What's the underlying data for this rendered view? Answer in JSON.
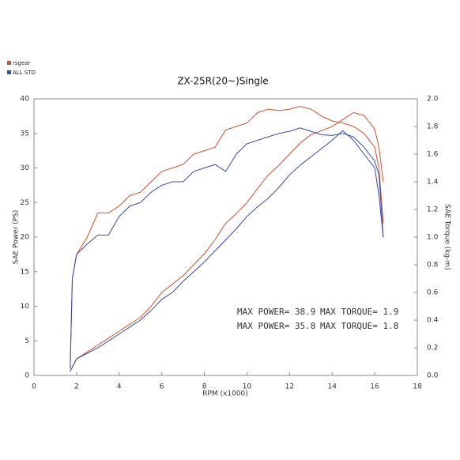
{
  "chart_data": {
    "type": "line",
    "title": "ZX-25R(20~)Single",
    "x_label": "RPM (x1000)",
    "y_label": "SAE Power (PS)",
    "y2_label": "SAE Torque (kg-m)",
    "x": [
      1.7,
      1.8,
      2,
      2.5,
      3,
      3.5,
      4,
      4.5,
      5,
      5.5,
      6,
      6.5,
      7,
      7.5,
      8,
      8.5,
      9,
      9.5,
      10,
      10.5,
      11,
      11.5,
      12,
      12.5,
      13,
      13.5,
      14,
      14.5,
      15,
      15.5,
      16,
      16.2,
      16.4
    ],
    "series": [
      {
        "name": "rsgear",
        "color": "#d0512e",
        "power": [
          1,
          14,
          17.5,
          20,
          23.5,
          23.5,
          24.5,
          26,
          26.5,
          28,
          29.5,
          30,
          30.5,
          32,
          32.5,
          33,
          35.5,
          36,
          36.5,
          38,
          38.5,
          38.3,
          38.5,
          38.9,
          38.5,
          37.5,
          36.8,
          36.5,
          36,
          35,
          33,
          30,
          22
        ],
        "torque": [
          0.03,
          0.06,
          0.12,
          0.17,
          0.22,
          0.27,
          0.32,
          0.37,
          0.42,
          0.5,
          0.6,
          0.66,
          0.72,
          0.8,
          0.88,
          0.98,
          1.1,
          1.17,
          1.25,
          1.35,
          1.45,
          1.52,
          1.6,
          1.68,
          1.74,
          1.77,
          1.8,
          1.85,
          1.9,
          1.88,
          1.78,
          1.65,
          1.4
        ]
      },
      {
        "name": "ALL STD",
        "color": "#3a4aa6",
        "power": [
          1,
          14,
          17.5,
          19,
          20.3,
          20.3,
          23,
          24.5,
          25,
          26.5,
          27.5,
          28,
          28,
          29.5,
          30,
          30.5,
          29.5,
          32,
          33.5,
          34,
          34.5,
          35,
          35.3,
          35.8,
          35.3,
          34.8,
          34.7,
          35,
          34.5,
          33,
          31,
          29,
          20
        ],
        "torque": [
          0.03,
          0.06,
          0.12,
          0.16,
          0.2,
          0.25,
          0.3,
          0.35,
          0.4,
          0.47,
          0.55,
          0.6,
          0.68,
          0.75,
          0.82,
          0.9,
          0.98,
          1.06,
          1.15,
          1.22,
          1.28,
          1.36,
          1.45,
          1.52,
          1.58,
          1.64,
          1.7,
          1.77,
          1.7,
          1.6,
          1.5,
          1.3,
          1.0
        ]
      }
    ],
    "xlim": [
      0,
      18
    ],
    "xticks": [
      0,
      2,
      4,
      6,
      8,
      10,
      12,
      14,
      16,
      18
    ],
    "ylim": [
      0,
      40
    ],
    "yticks": [
      0,
      5,
      10,
      15,
      20,
      25,
      30,
      35,
      40
    ],
    "y2lim": [
      0,
      2
    ],
    "y2ticks": [
      {
        "value": 0,
        "label": "0.0"
      },
      0.2,
      0.4,
      0.6,
      0.8,
      {
        "value": 1,
        "label": "1.0"
      },
      1.2,
      1.4,
      1.6,
      1.8,
      {
        "value": 2,
        "label": "2.0"
      }
    ],
    "annotations": [
      {
        "text": "MAX POWER= 38.9",
        "color": "#d0512e"
      },
      {
        "text": "MAX TORQUE= 1.9",
        "color": "#d0512e"
      },
      {
        "text": "MAX POWER= 35.8",
        "color": "#3a4aa6"
      },
      {
        "text": "MAX TORQUE= 1.8",
        "color": "#3a4aa6"
      }
    ]
  }
}
